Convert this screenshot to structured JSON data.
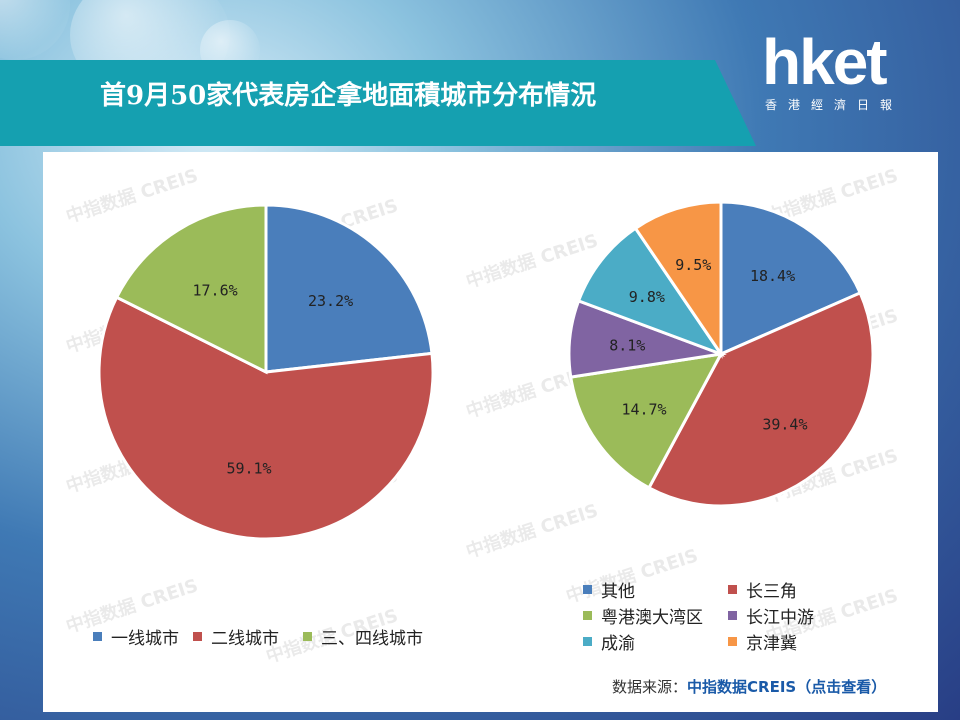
{
  "header": {
    "title": "首9月50家代表房企拿地面積城市分布情況"
  },
  "logo": {
    "main": "hket",
    "sub": "香港經濟日報"
  },
  "colors": {
    "blue": "#4a7ebb",
    "red": "#c0504d",
    "green": "#9bbb59",
    "purple": "#8064a2",
    "cyan": "#4bacc6",
    "orange": "#f79646"
  },
  "watermark": "中指数据 CREIS",
  "chart_data": [
    {
      "type": "pie",
      "slices": [
        {
          "label": "一线城市",
          "value": 23.2,
          "display": "23.2%",
          "color": "#4a7ebb"
        },
        {
          "label": "二线城市",
          "value": 59.1,
          "display": "59.1%",
          "color": "#c0504d"
        },
        {
          "label": "三、四线城市",
          "value": 17.6,
          "display": "17.6%",
          "color": "#9bbb59"
        }
      ],
      "legend_position": "bottom"
    },
    {
      "type": "pie",
      "slices": [
        {
          "label": "其他",
          "value": 18.4,
          "display": "18.4%",
          "color": "#4a7ebb"
        },
        {
          "label": "长三角",
          "value": 39.4,
          "display": "39.4%",
          "color": "#c0504d"
        },
        {
          "label": "粤港澳大湾区",
          "value": 14.7,
          "display": "14.7%",
          "color": "#9bbb59"
        },
        {
          "label": "长江中游",
          "value": 8.1,
          "display": "8.1%",
          "color": "#8064a2"
        },
        {
          "label": "成渝",
          "value": 9.8,
          "display": "9.8%",
          "color": "#4bacc6"
        },
        {
          "label": "京津冀",
          "value": 9.5,
          "display": "9.5%",
          "color": "#f79646"
        }
      ],
      "legend_position": "bottom"
    }
  ],
  "source": {
    "prefix": "数据来源：",
    "link": "中指数据CREIS（点击查看）"
  }
}
